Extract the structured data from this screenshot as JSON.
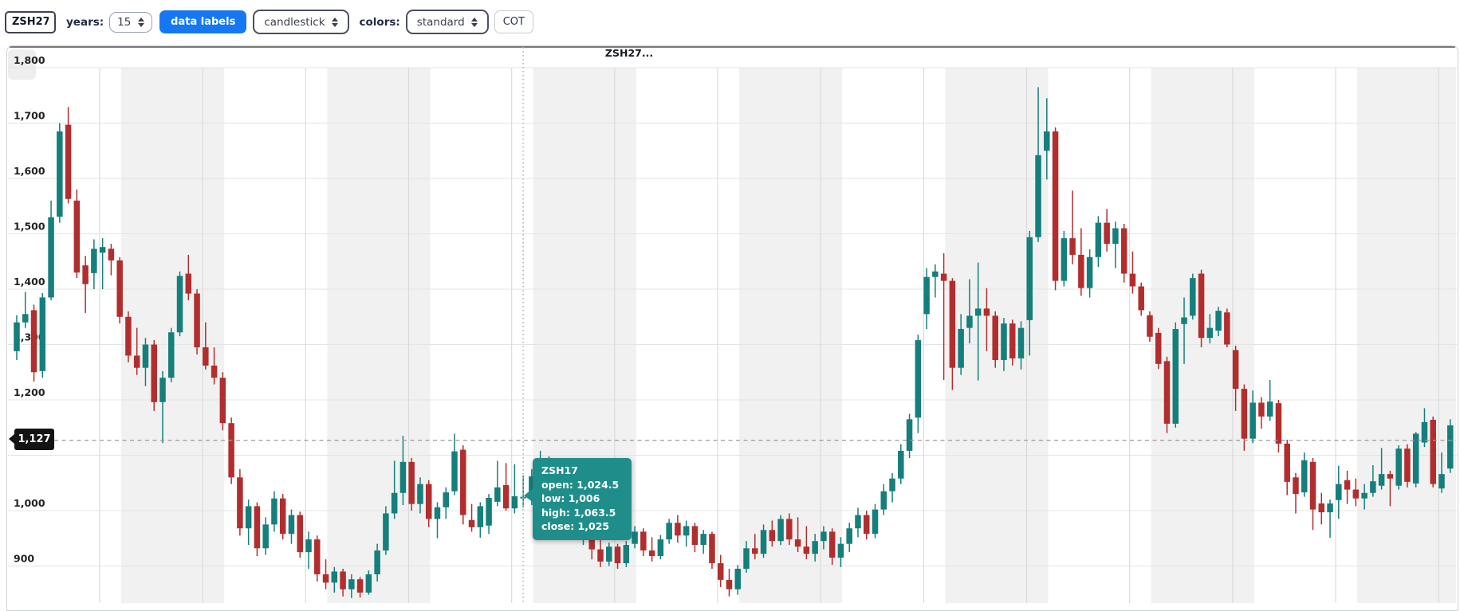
{
  "toolbar": {
    "symbol_input": {
      "value": "ZSH27"
    },
    "years": {
      "label": "years:",
      "value": "15"
    },
    "data_labels_button": "data labels",
    "chart_type_select": {
      "value": "candlestick"
    },
    "colors": {
      "label": "colors:",
      "value": "standard"
    },
    "cot_button": "COT"
  },
  "chart": {
    "title": "ZSH27...",
    "crosshair_price": "1,127",
    "tooltip": {
      "lines": [
        "ZSH17",
        "open: 1,024.5",
        "low: 1,006",
        "high: 1,063.5",
        "close: 1,025"
      ],
      "ohlc": {
        "open": 1024.5,
        "high": 1063.5,
        "low": 1006,
        "close": 1025
      }
    },
    "colors": {
      "up": "#157f7c",
      "down": "#b22e2e",
      "tooltip_bg": "#1f8e8a",
      "accent_blue": "#1677f2",
      "badge_bg": "#131313",
      "band_gray": "#f1f1f1",
      "hgrid": "#e4e4e4",
      "vgrid": "#d9d9d9"
    },
    "chart_data": {
      "type": "candlestick",
      "symbol": "ZSH27",
      "title": "ZSH27...",
      "xlabel": "",
      "ylabel": "",
      "legend": "none",
      "grid": "horizontal price lines + vertical year lines + alternating year bands",
      "y_range": [
        840,
        1810
      ],
      "gridline_prices": [
        900,
        1000,
        1100,
        1200,
        1300,
        1400,
        1500,
        1600,
        1700,
        1800
      ],
      "y_ticks": {
        "labels": [
          "1,800",
          "1,700",
          "1,600",
          "1,500",
          "1,400",
          "1,300",
          "1,200",
          "1,000",
          "900"
        ],
        "prices": [
          1800,
          1700,
          1600,
          1500,
          1400,
          1300,
          1200,
          1000,
          900
        ]
      },
      "crosshair": {
        "price": 1127,
        "hovered_index": 59
      },
      "candles": [
        [
          1288,
          1353,
          1272,
          1340
        ],
        [
          1340,
          1395,
          1330,
          1355
        ],
        [
          1362,
          1372,
          1233,
          1250
        ],
        [
          1252,
          1393,
          1240,
          1385
        ],
        [
          1385,
          1560,
          1380,
          1530
        ],
        [
          1531,
          1700,
          1520,
          1685
        ],
        [
          1697,
          1729,
          1555,
          1563
        ],
        [
          1560,
          1580,
          1420,
          1430
        ],
        [
          1443,
          1460,
          1357,
          1409
        ],
        [
          1429,
          1490,
          1400,
          1473
        ],
        [
          1466,
          1492,
          1400,
          1476
        ],
        [
          1473,
          1482,
          1425,
          1452
        ],
        [
          1452,
          1458,
          1338,
          1350
        ],
        [
          1350,
          1360,
          1268,
          1280
        ],
        [
          1280,
          1330,
          1245,
          1258
        ],
        [
          1258,
          1312,
          1225,
          1300
        ],
        [
          1300,
          1308,
          1180,
          1196
        ],
        [
          1196,
          1252,
          1122,
          1240
        ],
        [
          1240,
          1330,
          1232,
          1322
        ],
        [
          1322,
          1432,
          1315,
          1424
        ],
        [
          1428,
          1462,
          1380,
          1392
        ],
        [
          1392,
          1400,
          1282,
          1295
        ],
        [
          1295,
          1340,
          1255,
          1262
        ],
        [
          1262,
          1295,
          1228,
          1240
        ],
        [
          1240,
          1250,
          1145,
          1158
        ],
        [
          1158,
          1168,
          1048,
          1060
        ],
        [
          1060,
          1075,
          955,
          968
        ],
        [
          968,
          1020,
          938,
          1008
        ],
        [
          1008,
          1015,
          918,
          932
        ],
        [
          932,
          988,
          920,
          975
        ],
        [
          975,
          1035,
          962,
          1022
        ],
        [
          1022,
          1030,
          948,
          958
        ],
        [
          958,
          1002,
          940,
          992
        ],
        [
          992,
          998,
          915,
          925
        ],
        [
          925,
          962,
          895,
          948
        ],
        [
          948,
          955,
          872,
          885
        ],
        [
          885,
          912,
          858,
          870
        ],
        [
          870,
          898,
          852,
          890
        ],
        [
          890,
          895,
          845,
          858
        ],
        [
          858,
          885,
          842,
          876
        ],
        [
          876,
          880,
          843,
          852
        ],
        [
          852,
          892,
          848,
          885
        ],
        [
          885,
          940,
          872,
          928
        ],
        [
          928,
          1008,
          920,
          995
        ],
        [
          995,
          1090,
          985,
          1032
        ],
        [
          1032,
          1135,
          1010,
          1088
        ],
        [
          1088,
          1095,
          1000,
          1012
        ],
        [
          1012,
          1060,
          995,
          1048
        ],
        [
          1048,
          1055,
          970,
          985
        ],
        [
          985,
          1015,
          950,
          1006
        ],
        [
          1006,
          1042,
          985,
          1033
        ],
        [
          1035,
          1139,
          1028,
          1107
        ],
        [
          1110,
          1118,
          975,
          992
        ],
        [
          983,
          1012,
          962,
          970
        ],
        [
          970,
          1015,
          951,
          1008
        ],
        [
          973,
          1030,
          958,
          1023
        ],
        [
          1016,
          1090,
          1008,
          1042
        ],
        [
          1046,
          1086,
          1000,
          1004
        ],
        [
          1004,
          1084,
          995,
          1026
        ],
        [
          1024.5,
          1063.5,
          1006,
          1025
        ],
        [
          1025,
          1075,
          1010,
          1062
        ],
        [
          1062,
          1108,
          1048,
          1092
        ],
        [
          1092,
          1098,
          1035,
          1048
        ],
        [
          1048,
          1066,
          1002,
          1058
        ],
        [
          1058,
          1063,
          975,
          988
        ],
        [
          988,
          1002,
          948,
          960
        ],
        [
          960,
          985,
          938,
          972
        ],
        [
          972,
          976,
          912,
          930
        ],
        [
          930,
          948,
          898,
          908
        ],
        [
          908,
          942,
          900,
          935
        ],
        [
          935,
          940,
          895,
          905
        ],
        [
          905,
          945,
          898,
          938
        ],
        [
          940,
          972,
          932,
          962
        ],
        [
          962,
          968,
          918,
          928
        ],
        [
          928,
          952,
          908,
          918
        ],
        [
          918,
          956,
          912,
          948
        ],
        [
          948,
          985,
          940,
          978
        ],
        [
          978,
          992,
          942,
          955
        ],
        [
          955,
          982,
          935,
          972
        ],
        [
          972,
          978,
          925,
          938
        ],
        [
          938,
          965,
          922,
          958
        ],
        [
          958,
          962,
          895,
          905
        ],
        [
          905,
          920,
          862,
          875
        ],
        [
          875,
          895,
          845,
          858
        ],
        [
          858,
          902,
          848,
          895
        ],
        [
          895,
          945,
          888,
          932
        ],
        [
          932,
          958,
          912,
          922
        ],
        [
          922,
          975,
          915,
          965
        ],
        [
          965,
          982,
          935,
          945
        ],
        [
          945,
          992,
          938,
          985
        ],
        [
          985,
          995,
          938,
          948
        ],
        [
          948,
          988,
          925,
          935
        ],
        [
          935,
          972,
          912,
          922
        ],
        [
          922,
          958,
          908,
          945
        ],
        [
          945,
          972,
          930,
          962
        ],
        [
          962,
          968,
          902,
          915
        ],
        [
          915,
          952,
          898,
          940
        ],
        [
          940,
          978,
          925,
          968
        ],
        [
          968,
          1005,
          952,
          992
        ],
        [
          992,
          1000,
          948,
          958
        ],
        [
          958,
          1012,
          950,
          1002
        ],
        [
          1002,
          1048,
          992,
          1035
        ],
        [
          1035,
          1068,
          1015,
          1058
        ],
        [
          1058,
          1120,
          1048,
          1108
        ],
        [
          1108,
          1175,
          1095,
          1165
        ],
        [
          1168,
          1318,
          1140,
          1308
        ],
        [
          1355,
          1438,
          1328,
          1422
        ],
        [
          1422,
          1445,
          1385,
          1432
        ],
        [
          1428,
          1465,
          1236,
          1415
        ],
        [
          1415,
          1420,
          1218,
          1258
        ],
        [
          1258,
          1355,
          1245,
          1328
        ],
        [
          1330,
          1418,
          1302,
          1352
        ],
        [
          1352,
          1448,
          1235,
          1365
        ],
        [
          1365,
          1402,
          1288,
          1352
        ],
        [
          1352,
          1360,
          1258,
          1272
        ],
        [
          1272,
          1348,
          1252,
          1338
        ],
        [
          1338,
          1345,
          1262,
          1275
        ],
        [
          1275,
          1342,
          1255,
          1330
        ],
        [
          1344,
          1505,
          1280,
          1494
        ],
        [
          1494,
          1765,
          1485,
          1642
        ],
        [
          1650,
          1745,
          1598,
          1685
        ],
        [
          1685,
          1692,
          1398,
          1415
        ],
        [
          1415,
          1505,
          1405,
          1492
        ],
        [
          1492,
          1578,
          1445,
          1462
        ],
        [
          1462,
          1510,
          1388,
          1402
        ],
        [
          1402,
          1472,
          1385,
          1458
        ],
        [
          1458,
          1532,
          1440,
          1520
        ],
        [
          1520,
          1545,
          1468,
          1482
        ],
        [
          1482,
          1522,
          1438,
          1510
        ],
        [
          1510,
          1518,
          1412,
          1428
        ],
        [
          1428,
          1468,
          1392,
          1405
        ],
        [
          1405,
          1412,
          1352,
          1362
        ],
        [
          1353,
          1360,
          1305,
          1314
        ],
        [
          1321,
          1330,
          1256,
          1265
        ],
        [
          1270,
          1278,
          1140,
          1157
        ],
        [
          1157,
          1340,
          1150,
          1328
        ],
        [
          1337,
          1385,
          1265,
          1349
        ],
        [
          1352,
          1428,
          1345,
          1420
        ],
        [
          1428,
          1435,
          1295,
          1312
        ],
        [
          1312,
          1355,
          1302,
          1330
        ],
        [
          1325,
          1368,
          1315,
          1361
        ],
        [
          1358,
          1365,
          1295,
          1300
        ],
        [
          1290,
          1298,
          1180,
          1220
        ],
        [
          1220,
          1228,
          1108,
          1130
        ],
        [
          1130,
          1217,
          1122,
          1195
        ],
        [
          1195,
          1205,
          1148,
          1170
        ],
        [
          1170,
          1236,
          1162,
          1197
        ],
        [
          1194,
          1200,
          1105,
          1121
        ],
        [
          1121,
          1128,
          1028,
          1052
        ],
        [
          1060,
          1068,
          995,
          1030
        ],
        [
          1033,
          1105,
          1025,
          1091
        ],
        [
          1088,
          1095,
          965,
          1002
        ],
        [
          1013,
          1032,
          975,
          997
        ],
        [
          997,
          1020,
          951,
          1013
        ],
        [
          1019,
          1081,
          985,
          1048
        ],
        [
          1055,
          1072,
          1012,
          1038
        ],
        [
          1038,
          1058,
          1008,
          1022
        ],
        [
          1022,
          1048,
          1002,
          1032
        ],
        [
          1032,
          1082,
          1025,
          1053
        ],
        [
          1045,
          1113,
          1038,
          1066
        ],
        [
          1066,
          1072,
          1008,
          1058
        ],
        [
          1045,
          1118,
          1038,
          1112
        ],
        [
          1112,
          1120,
          1042,
          1052
        ],
        [
          1049,
          1142,
          1042,
          1139
        ],
        [
          1123,
          1185,
          1115,
          1160
        ],
        [
          1164,
          1170,
          1042,
          1048
        ],
        [
          1040,
          1105,
          1032,
          1066
        ],
        [
          1076,
          1165,
          1068,
          1154
        ]
      ]
    }
  }
}
